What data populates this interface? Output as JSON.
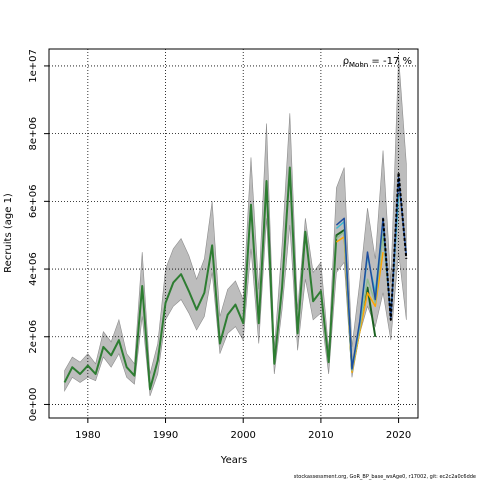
{
  "chart_data": {
    "type": "line",
    "xlabel": "Years",
    "ylabel": "Recruits (age 1)",
    "xlim": [
      1975,
      2022.5
    ],
    "ylim": [
      -400000,
      10500000
    ],
    "x_ticks": [
      1980,
      1990,
      2000,
      2010,
      2020
    ],
    "x_tick_labels": [
      "1980",
      "1990",
      "2000",
      "2010",
      "2020"
    ],
    "y_ticks": [
      0,
      2000000,
      4000000,
      6000000,
      8000000,
      10000000
    ],
    "y_tick_labels": [
      "0e+00",
      "2e+06",
      "4e+06",
      "6e+06",
      "8e+06",
      "1e+07"
    ],
    "grid": true,
    "annotation": {
      "prefix": "ρ",
      "subscript": "Mohn",
      "text": " = -17 %"
    },
    "footer": "stockassessment.org, GoR_BP_base_wsAge0, r17002, git: ec2c2a0c6dde",
    "band": {
      "x": [
        1977,
        1978,
        1979,
        1980,
        1981,
        1982,
        1983,
        1984,
        1985,
        1986,
        1987,
        1988,
        1989,
        1990,
        1991,
        1992,
        1993,
        1994,
        1995,
        1996,
        1997,
        1998,
        1999,
        2000,
        2001,
        2002,
        2003,
        2004,
        2005,
        2006,
        2007,
        2008,
        2009,
        2010,
        2011,
        2012,
        2013,
        2014,
        2015,
        2016,
        2017,
        2018,
        2019,
        2020,
        2021
      ],
      "upper": [
        1000000,
        1400000,
        1250000,
        1500000,
        1200000,
        2150000,
        1850000,
        2500000,
        1500000,
        1200000,
        4500000,
        900000,
        1800000,
        4000000,
        4600000,
        4900000,
        4400000,
        3700000,
        4300000,
        6000000,
        2600000,
        3400000,
        3650000,
        3100000,
        7300000,
        3400000,
        8300000,
        1600000,
        4700000,
        8600000,
        2800000,
        5500000,
        3900000,
        4200000,
        1600000,
        6400000,
        7000000,
        1700000,
        3600000,
        5800000,
        4300000,
        7500000,
        3600000,
        10300000,
        7100000
      ],
      "lower": [
        400000,
        800000,
        650000,
        800000,
        700000,
        1400000,
        1100000,
        1500000,
        800000,
        600000,
        2600000,
        250000,
        900000,
        2500000,
        2900000,
        3100000,
        2700000,
        2200000,
        2600000,
        3900000,
        1500000,
        2100000,
        2300000,
        1900000,
        4600000,
        1800000,
        5500000,
        900000,
        2800000,
        5300000,
        1600000,
        3700000,
        2500000,
        2700000,
        900000,
        3900000,
        4200000,
        800000,
        2100000,
        2900000,
        2300000,
        3300000,
        1900000,
        4500000,
        2500000
      ]
    },
    "series": [
      {
        "name": "",
        "color": "#2e7d32",
        "x": [
          1977,
          1978,
          1979,
          1980,
          1981,
          1982,
          1983,
          1984,
          1985,
          1986,
          1987,
          1988,
          1989,
          1990,
          1991,
          1992,
          1993,
          1994,
          1995,
          1996,
          1997,
          1998,
          1999,
          2000,
          2001,
          2002,
          2003,
          2004,
          2005,
          2006,
          2007,
          2008,
          2009,
          2010,
          2011,
          2012,
          2013,
          2014,
          2015,
          2016,
          2017
        ],
        "values": [
          650000,
          1100000,
          900000,
          1150000,
          900000,
          1700000,
          1450000,
          1900000,
          1100000,
          850000,
          3500000,
          450000,
          1300000,
          3000000,
          3600000,
          3850000,
          3350000,
          2800000,
          3300000,
          4700000,
          1800000,
          2650000,
          2950000,
          2400000,
          5900000,
          2400000,
          6600000,
          1200000,
          3450000,
          7000000,
          2100000,
          5100000,
          3050000,
          3350000,
          1250000,
          5000000,
          5150000,
          1000000,
          2200000,
          3450000,
          2000000
        ]
      },
      {
        "name": "",
        "color": "#1b5e20",
        "x": [
          2012,
          2013,
          2014,
          2015,
          2016,
          2017
        ],
        "values": [
          5000000,
          5150000,
          1000000,
          2200000,
          3450000,
          2000000
        ]
      },
      {
        "name": "",
        "color": "#ffa600",
        "x": [
          2012,
          2013,
          2014,
          2015,
          2016,
          2017,
          2018
        ],
        "values": [
          4800000,
          4950000,
          950000,
          2150000,
          3300000,
          2900000,
          4500000
        ]
      },
      {
        "name": "",
        "color": "#8fbc8f",
        "x": [
          2012,
          2013,
          2014,
          2015,
          2016,
          2017,
          2018,
          2019
        ],
        "values": [
          4900000,
          5100000,
          1000000,
          2250000,
          3700000,
          3000000,
          5000000,
          2600000
        ]
      },
      {
        "name": "",
        "color": "#40b8d0",
        "x": [
          2012,
          2013,
          2014,
          2015,
          2016,
          2017,
          2018,
          2019,
          2020
        ],
        "values": [
          5200000,
          5400000,
          1050000,
          2400000,
          4400000,
          3300000,
          5400000,
          2600000,
          6200000
        ]
      },
      {
        "name": "",
        "color": "#1f4e9e",
        "x": [
          2012,
          2013,
          2014,
          2015,
          2016,
          2017,
          2018,
          2019,
          2020,
          2021
        ],
        "values": [
          5300000,
          5500000,
          1050000,
          2450000,
          4500000,
          3100000,
          5500000,
          2500000,
          6700000,
          4400000
        ]
      },
      {
        "name": "",
        "color": "#000000",
        "dashed": true,
        "x": [
          2018,
          2019,
          2020,
          2021
        ],
        "values": [
          5500000,
          2500000,
          6850000,
          4300000
        ]
      }
    ]
  }
}
